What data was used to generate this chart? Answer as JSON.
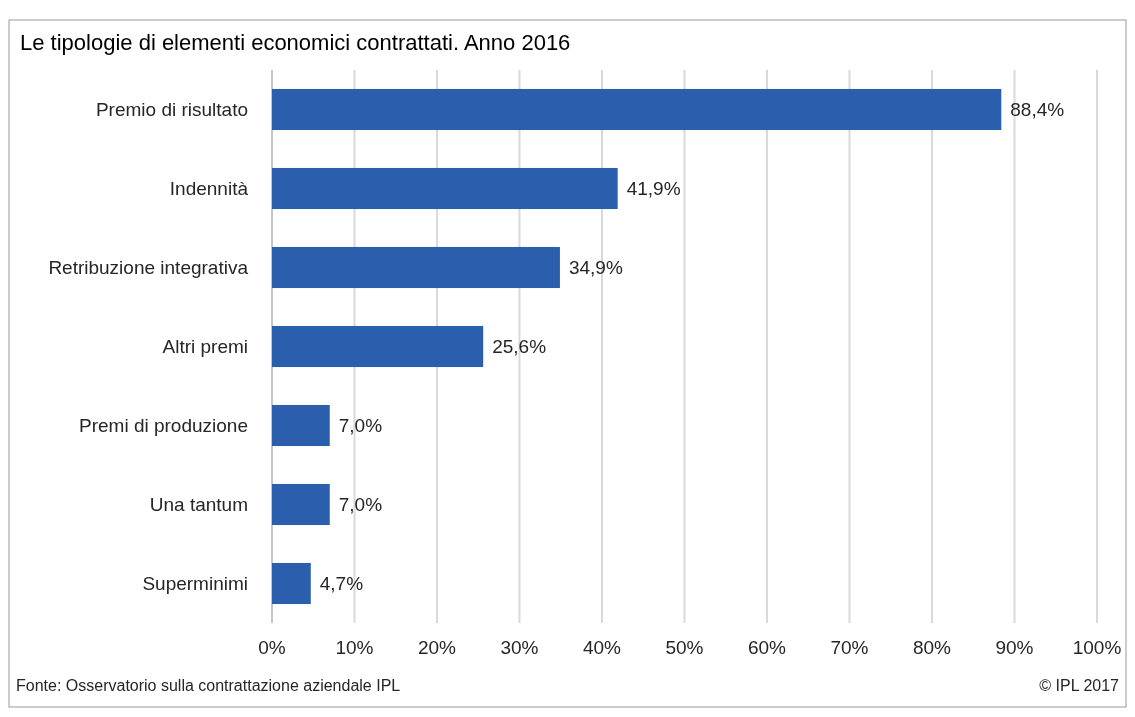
{
  "chart_data": {
    "type": "bar",
    "orientation": "horizontal",
    "title": "Le tipologie di elementi economici contrattati. Anno 2016",
    "categories": [
      "Premio di risultato",
      "Indennità",
      "Retribuzione integrativa",
      "Altri premi",
      "Premi di produzione",
      "Una tantum",
      "Superminimi"
    ],
    "values": [
      88.4,
      41.9,
      34.9,
      25.6,
      7.0,
      7.0,
      4.7
    ],
    "value_labels": [
      "88,4%",
      "41,9%",
      "34,9%",
      "25,6%",
      "7,0%",
      "7,0%",
      "4,7%"
    ],
    "color": "#2b5ead",
    "xlim": [
      0,
      100
    ],
    "xticks": [
      {
        "value": 0,
        "label": "0%"
      },
      {
        "value": 10,
        "label": "10%"
      },
      {
        "value": 20,
        "label": "20%"
      },
      {
        "value": 30,
        "label": "30%"
      },
      {
        "value": 40,
        "label": "40%"
      },
      {
        "value": 50,
        "label": "50%"
      },
      {
        "value": 60,
        "label": "60%"
      },
      {
        "value": 70,
        "label": "70%"
      },
      {
        "value": 80,
        "label": "80%"
      },
      {
        "value": 90,
        "label": "90%"
      },
      {
        "value": 100,
        "label": "100%"
      }
    ],
    "grid": "x",
    "annotations": [
      "Fonte: Osservatorio sulla contrattazione aziendale IPL",
      "© IPL 2017"
    ]
  }
}
